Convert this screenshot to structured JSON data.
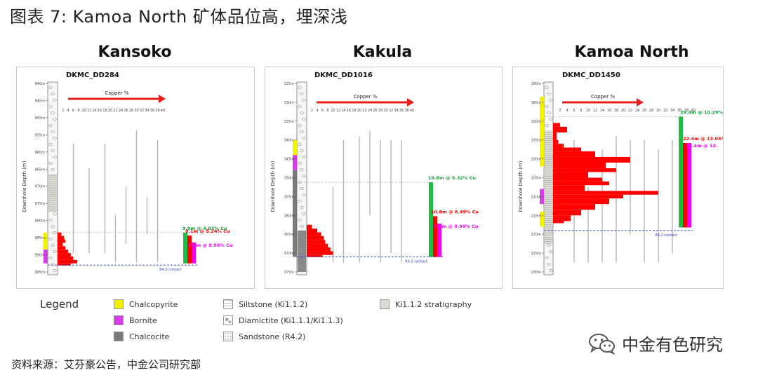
{
  "title": "图表 7: Kamoa North 矿体品位高，埋深浅",
  "source": "资料来源：艾芬豪公告，中金公司研究部",
  "watermark": "中金有色研究",
  "legend": {
    "title": "Legend",
    "items": [
      {
        "label": "Chalcopyrite",
        "color": "#f2f200"
      },
      {
        "label": "Bornite",
        "color": "#d63ee8"
      },
      {
        "label": "Chalcocite",
        "color": "#7a7a7a"
      },
      {
        "label": "Siltstone (Ki1.1.2)",
        "color": "#f4f4f4"
      },
      {
        "label": "Diamictite (Ki1.1.1/Ki1.1.3)",
        "color": "#f4f4f4"
      },
      {
        "label": "Sandstone (R4.2)",
        "color": "#f4f4f4"
      },
      {
        "label": "Ki1.1.2 stratigraphy",
        "color": "#d9dcd3"
      }
    ]
  },
  "chart_data": [
    {
      "type": "bar",
      "panel": "Kansoko",
      "drillhole": "DKMC_DD284",
      "arrow_label": "Copper %",
      "ylabel": "Downhole Depth (m)",
      "x_ticks": [
        "2",
        "4",
        "6",
        "8",
        "10",
        "12",
        "14",
        "16",
        "18",
        "20",
        "22",
        "24",
        "26",
        "28",
        "30",
        "32",
        "34",
        "36",
        "38",
        "40"
      ],
      "depth_ticks": [
        "940m",
        "945m",
        "950m",
        "955m",
        "960m",
        "965m",
        "970m",
        "975m",
        "980m",
        "985m",
        "990m",
        "995m"
      ],
      "depth_range": [
        940,
        995
      ],
      "cu_profile": [
        [
          983.5,
          1.5
        ],
        [
          984.5,
          2.5
        ],
        [
          985.5,
          3.0
        ],
        [
          986.5,
          2.0
        ],
        [
          987.5,
          3.0
        ],
        [
          988.5,
          4.0
        ],
        [
          989.5,
          5.0
        ],
        [
          990.5,
          6.0
        ],
        [
          991.5,
          7.5
        ],
        [
          992.5,
          5.0
        ]
      ],
      "intervals": [
        {
          "label": "9.0m @ 4.83% Cu",
          "color": "#22bb44",
          "from": 983.5,
          "to": 992.5
        },
        {
          "label": "8.1m @ 5.24% Cu",
          "color": "#ff0000",
          "from": 984.4,
          "to": 992.5
        },
        {
          "label": "6.1m @ 5.98% Cu",
          "color": "#ee00ee",
          "from": 986.4,
          "to": 992.5
        }
      ],
      "contact_label": "R4.2 contact",
      "contact_depth": 993
    },
    {
      "type": "bar",
      "panel": "Kakula",
      "drillhole": "DKMC_DD1016",
      "arrow_label": "Copper %",
      "ylabel": "Downhole Depth (m)",
      "x_ticks": [
        "2",
        "4",
        "6",
        "8",
        "10",
        "12",
        "14",
        "16",
        "18",
        "20",
        "22",
        "24",
        "26",
        "28",
        "30",
        "32",
        "34",
        "36",
        "38",
        "40"
      ],
      "depth_ticks": [
        "325m",
        "330m",
        "335m",
        "340m",
        "345m",
        "350m",
        "355m",
        "360m",
        "365m",
        "370m",
        "375m"
      ],
      "depth_range": [
        325,
        375
      ],
      "cu_profile": [
        [
          362.5,
          2.0
        ],
        [
          363.5,
          4.0
        ],
        [
          364.5,
          5.5
        ],
        [
          365.5,
          6.5
        ],
        [
          366.5,
          7.0
        ],
        [
          367.5,
          8.0
        ],
        [
          368.5,
          9.0
        ],
        [
          369.5,
          10.0
        ],
        [
          370.5,
          6.0
        ]
      ],
      "intervals": [
        {
          "label": "19.8m @ 5.32% Cu",
          "color": "#22bb44",
          "from": 351.2,
          "to": 371
        },
        {
          "label": "10.8m @ 8.49% Cu",
          "color": "#ff0000",
          "from": 360.2,
          "to": 371
        },
        {
          "label": "8.8m @ 9.90% Cu",
          "color": "#ee00ee",
          "from": 362.2,
          "to": 371
        }
      ],
      "contact_label": "R4.2 contact",
      "contact_depth": 371
    },
    {
      "type": "bar",
      "panel": "Kamoa North",
      "drillhole": "DKMC_DD1450",
      "arrow_label": "Copper %",
      "ylabel": "Downhole Depth (m)",
      "x_ticks": [
        "2",
        "4",
        "6",
        "8",
        "10",
        "12",
        "14",
        "16",
        "18",
        "20",
        "22",
        "24",
        "26",
        "28",
        "30",
        "32",
        "34",
        "36",
        "38",
        "40"
      ],
      "depth_ticks": [
        "180m",
        "185m",
        "190m",
        "195m",
        "200m",
        "205m",
        "210m",
        "215m",
        "220m",
        "225m",
        "230m"
      ],
      "depth_range": [
        180,
        230
      ],
      "cu_profile": [
        [
          190.5,
          2.0
        ],
        [
          191.5,
          4.0
        ],
        [
          193,
          1.0
        ],
        [
          195,
          1.5
        ],
        [
          196,
          3.0
        ],
        [
          197,
          8.0
        ],
        [
          198,
          12.0
        ],
        [
          199.5,
          22.0
        ],
        [
          201,
          15.0
        ],
        [
          202.5,
          18.0
        ],
        [
          203.5,
          10.0
        ],
        [
          205,
          14.0
        ],
        [
          206,
          16.0
        ],
        [
          207,
          9.0
        ],
        [
          208.5,
          30.0
        ],
        [
          209.5,
          20.0
        ],
        [
          210.5,
          16.0
        ],
        [
          212,
          12.0
        ],
        [
          213.5,
          8.0
        ],
        [
          215,
          5.0
        ],
        [
          216.5,
          3.0
        ]
      ],
      "intervals": [
        {
          "label": "29.4m @ 10.29% Cu",
          "color": "#22bb44",
          "from": 188.8,
          "to": 218.2
        },
        {
          "label": "22.4m @ 13.05% Cu",
          "color": "#ff0000",
          "from": 195.8,
          "to": 218.2
        },
        {
          "label": "22.4m @ 13.",
          "color": "#ee00ee",
          "from": 195.8,
          "to": 218.2
        }
      ],
      "contact_label": "R4.2 contact",
      "contact_depth": 219
    }
  ]
}
